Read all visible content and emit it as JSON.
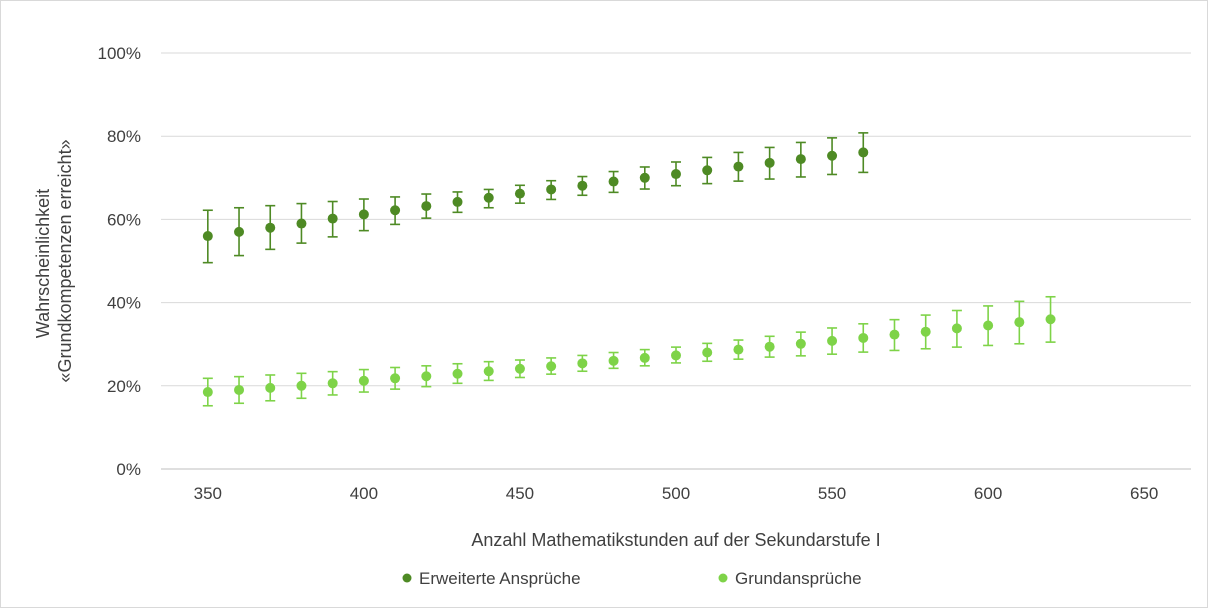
{
  "chart_data": {
    "type": "scatter",
    "xlabel": "Anzahl Mathematikstunden auf der Sekundarstufe I",
    "ylabel_lines": [
      "Wahrscheinlichkeit",
      "«Grundkompetenzen erreicht»"
    ],
    "xlim": [
      335,
      665
    ],
    "ylim": [
      0,
      100
    ],
    "x_ticks": [
      350,
      400,
      450,
      500,
      550,
      600,
      650
    ],
    "y_ticks": [
      0,
      20,
      40,
      60,
      80,
      100
    ],
    "y_tick_labels": [
      "0%",
      "20%",
      "40%",
      "60%",
      "80%",
      "100%"
    ],
    "grid": "horizontal",
    "legend_position": "bottom",
    "error_bars": true,
    "series": [
      {
        "name": "Erweiterte Ansprüche",
        "color": "#4e8a24",
        "x": [
          350,
          360,
          370,
          380,
          390,
          400,
          410,
          420,
          430,
          440,
          450,
          460,
          470,
          480,
          490,
          500,
          510,
          520,
          530,
          540,
          550,
          560
        ],
        "y": [
          56,
          57,
          58,
          59,
          60.2,
          61.2,
          62.2,
          63.2,
          64.2,
          65.2,
          66.2,
          67.2,
          68.1,
          69.1,
          70,
          70.9,
          71.8,
          72.7,
          73.6,
          74.5,
          75.3,
          76.1
        ],
        "lower": [
          49.6,
          51.3,
          52.8,
          54.3,
          55.8,
          57.3,
          58.8,
          60.3,
          61.7,
          62.8,
          63.9,
          64.8,
          65.8,
          66.5,
          67.3,
          68.1,
          68.6,
          69.2,
          69.7,
          70.2,
          70.8,
          71.3
        ],
        "upper": [
          62.2,
          62.8,
          63.3,
          63.8,
          64.3,
          64.9,
          65.4,
          66.1,
          66.6,
          67.2,
          68.2,
          69.3,
          70.3,
          71.5,
          72.6,
          73.8,
          74.9,
          76.1,
          77.3,
          78.5,
          79.6,
          80.8
        ]
      },
      {
        "name": "Grundansprüche",
        "color": "#7ed348",
        "x": [
          350,
          360,
          370,
          380,
          390,
          400,
          410,
          420,
          430,
          440,
          450,
          460,
          470,
          480,
          490,
          500,
          510,
          520,
          530,
          540,
          550,
          560,
          570,
          580,
          590,
          600,
          610,
          620
        ],
        "y": [
          18.5,
          19,
          19.5,
          20,
          20.6,
          21.2,
          21.8,
          22.3,
          22.9,
          23.5,
          24.1,
          24.7,
          25.4,
          26,
          26.7,
          27.3,
          28,
          28.7,
          29.4,
          30.1,
          30.8,
          31.5,
          32.3,
          33,
          33.8,
          34.5,
          35.3,
          36
        ],
        "lower": [
          15.2,
          15.8,
          16.4,
          17,
          17.8,
          18.5,
          19.2,
          19.8,
          20.6,
          21.3,
          22,
          22.8,
          23.5,
          24.2,
          24.8,
          25.5,
          25.9,
          26.4,
          26.9,
          27.2,
          27.6,
          28.1,
          28.5,
          28.9,
          29.3,
          29.7,
          30.1,
          30.5
        ],
        "upper": [
          21.8,
          22.2,
          22.6,
          23,
          23.4,
          23.9,
          24.4,
          24.8,
          25.3,
          25.8,
          26.2,
          26.7,
          27.3,
          28,
          28.7,
          29.3,
          30.2,
          31,
          31.9,
          32.9,
          33.9,
          34.9,
          35.9,
          37,
          38.1,
          39.2,
          40.3,
          41.4
        ]
      }
    ]
  }
}
